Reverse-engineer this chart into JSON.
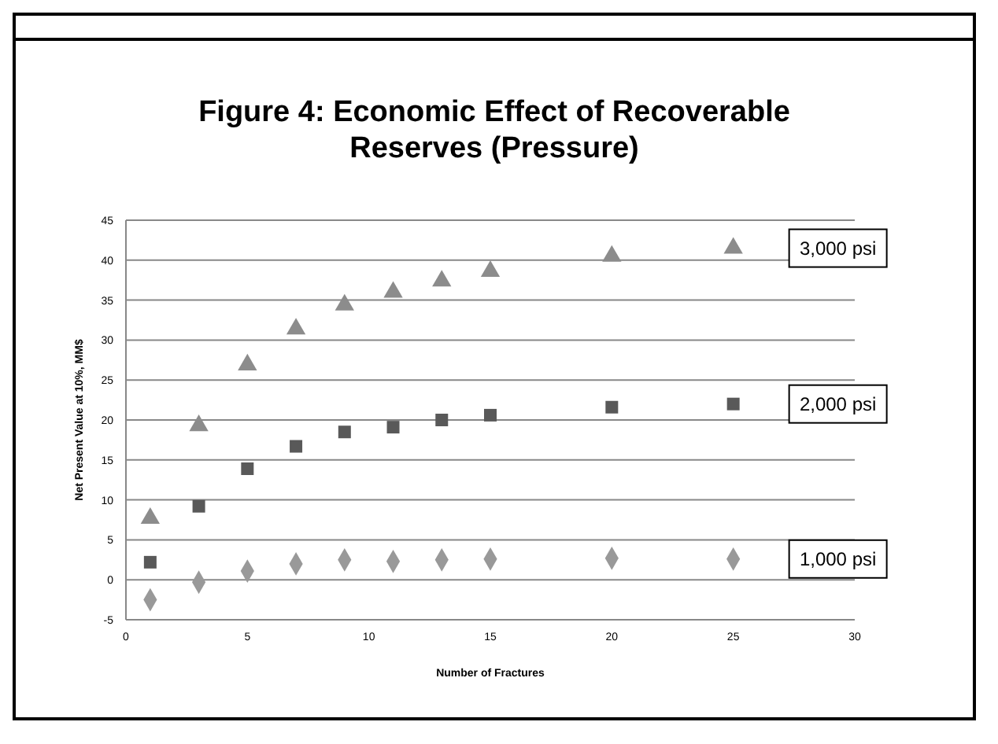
{
  "chart_data": {
    "type": "scatter",
    "title": "Figure 4: Economic Effect of Recoverable Reserves (Pressure)",
    "xlabel": "Number of Fractures",
    "ylabel": "Net Present Value at 10%, MM$",
    "x": [
      1,
      3,
      5,
      7,
      9,
      11,
      13,
      15,
      20,
      25
    ],
    "series": [
      {
        "name": "3,000 psi",
        "color": "#8c8c8c",
        "marker": "triangle",
        "values": [
          7.7,
          19.3,
          26.9,
          31.4,
          34.4,
          36.0,
          37.4,
          38.6,
          40.5,
          41.5
        ]
      },
      {
        "name": "2,000 psi",
        "color": "#595959",
        "marker": "square",
        "values": [
          2.2,
          9.2,
          13.9,
          16.7,
          18.5,
          19.1,
          20.0,
          20.6,
          21.6,
          22.0
        ]
      },
      {
        "name": "1,000 psi",
        "color": "#999999",
        "marker": "diamond",
        "values": [
          -2.5,
          -0.3,
          1.1,
          2.0,
          2.5,
          2.3,
          2.5,
          2.6,
          2.7,
          2.6
        ]
      }
    ],
    "xlim": [
      0,
      30
    ],
    "xticks": [
      0,
      5,
      10,
      15,
      20,
      25,
      30
    ],
    "ylim": [
      -5,
      45
    ],
    "yticks": [
      -5,
      0,
      5,
      10,
      15,
      20,
      25,
      30,
      35,
      40,
      45
    ],
    "grid": "y",
    "legend": false
  }
}
